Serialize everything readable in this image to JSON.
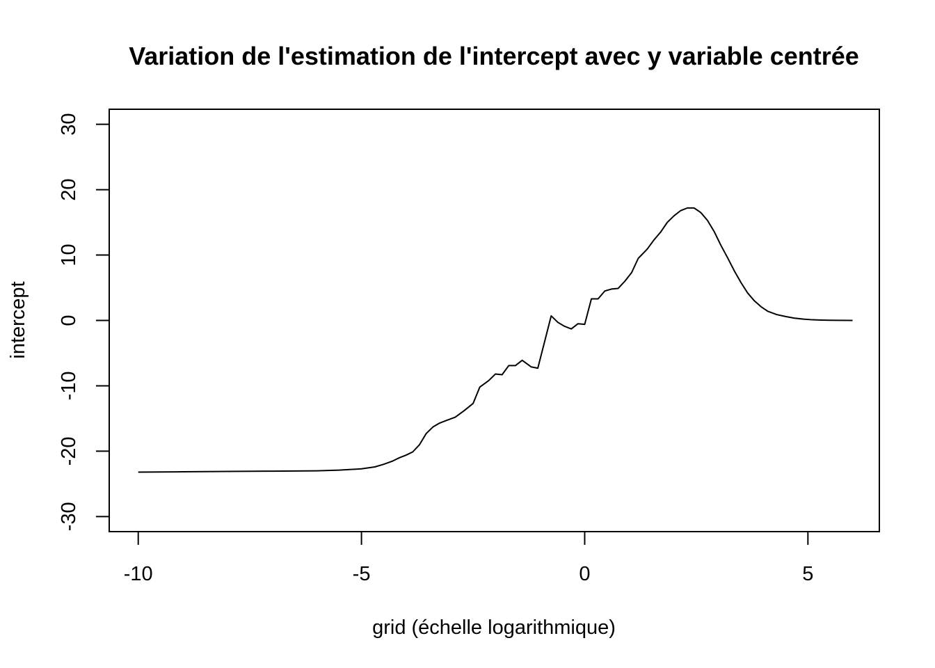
{
  "chart_data": {
    "type": "line",
    "title": "Variation de l'estimation de l'intercept avec y variable centrée",
    "xlabel": "grid (échelle logarithmique)",
    "ylabel": "intercept",
    "xlim": [
      -10.65,
      6.6
    ],
    "ylim": [
      -32.3,
      32.3
    ],
    "x_ticks": [
      -10,
      -5,
      0,
      5
    ],
    "x_tick_labels": [
      "-10",
      "-5",
      "0",
      "5"
    ],
    "y_ticks": [
      -30,
      -20,
      -10,
      0,
      10,
      20,
      30
    ],
    "y_tick_labels": [
      "-30",
      "-20",
      "-10",
      "0",
      "10",
      "20",
      "30"
    ],
    "grid": false,
    "legend": "none",
    "line_color": "#000000",
    "series": [
      {
        "x": [
          -10,
          -9,
          -8,
          -7,
          -6,
          -5.5,
          -5,
          -4.7,
          -4.5,
          -4.3,
          -4.15,
          -4,
          -3.85,
          -3.7,
          -3.55,
          -3.4,
          -3.25,
          -3.1,
          -2.9,
          -2.7,
          -2.5,
          -2.35,
          -2.15,
          -2,
          -1.85,
          -1.7,
          -1.55,
          -1.4,
          -1.2,
          -1.05,
          -0.9,
          -0.75,
          -0.6,
          -0.45,
          -0.3,
          -0.15,
          0,
          0.15,
          0.3,
          0.45,
          0.6,
          0.75,
          0.9,
          1.05,
          1.2,
          1.4,
          1.55,
          1.7,
          1.85,
          2.0,
          2.15,
          2.3,
          2.45,
          2.6,
          2.75,
          2.9,
          3.05,
          3.2,
          3.35,
          3.5,
          3.65,
          3.8,
          3.95,
          4.1,
          4.3,
          4.5,
          4.7,
          4.9,
          5.1,
          5.3,
          5.5,
          5.7,
          6.0
        ],
        "y": [
          -23.2,
          -23.15,
          -23.1,
          -23.05,
          -23.0,
          -22.9,
          -22.7,
          -22.4,
          -22.0,
          -21.5,
          -21.0,
          -20.6,
          -20.1,
          -19.0,
          -17.3,
          -16.3,
          -15.7,
          -15.3,
          -14.8,
          -13.8,
          -12.7,
          -10.2,
          -9.2,
          -8.2,
          -8.3,
          -6.9,
          -6.9,
          -6.1,
          -7.1,
          -7.3,
          -3.3,
          0.7,
          -0.3,
          -0.9,
          -1.3,
          -0.5,
          -0.6,
          3.3,
          3.3,
          4.5,
          4.8,
          4.9,
          6.0,
          7.3,
          9.5,
          10.9,
          12.3,
          13.5,
          15.0,
          16.0,
          16.8,
          17.2,
          17.2,
          16.5,
          15.3,
          13.6,
          11.5,
          9.6,
          7.6,
          5.8,
          4.2,
          3.0,
          2.1,
          1.4,
          0.9,
          0.6,
          0.35,
          0.2,
          0.1,
          0.05,
          0.02,
          0.01,
          0.0
        ]
      }
    ]
  }
}
